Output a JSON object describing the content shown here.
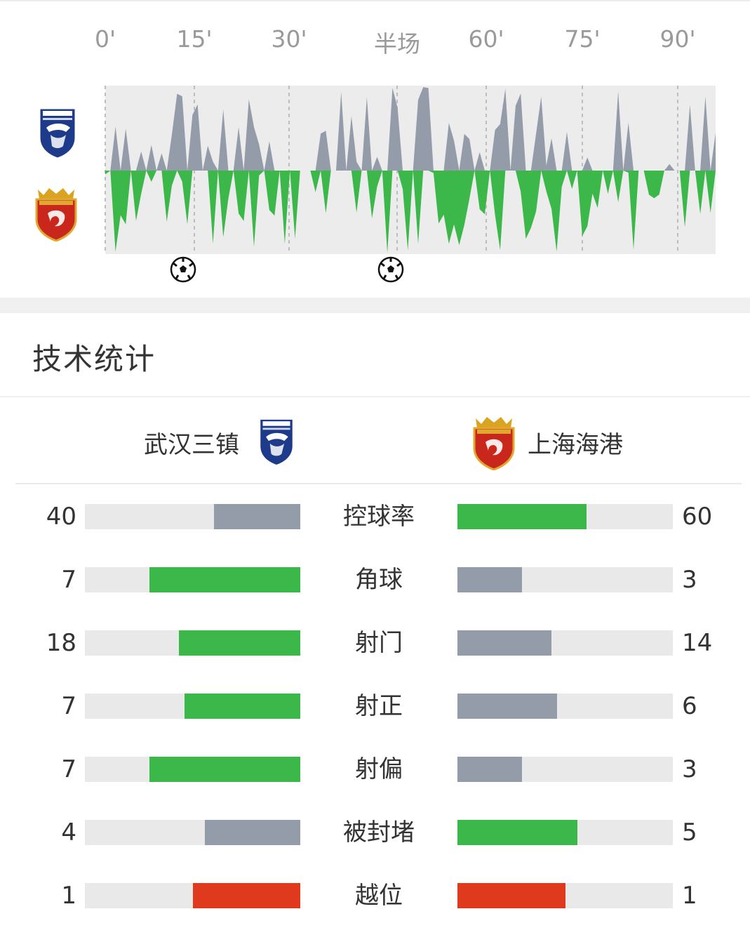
{
  "timeline": {
    "labels": [
      "0'",
      "15'",
      "30'",
      "半场",
      "60'",
      "75'",
      "90'"
    ],
    "goal_minutes": [
      12,
      44
    ]
  },
  "stats": {
    "title": "技术统计",
    "home_team": "武汉三镇",
    "away_team": "上海海港",
    "rows": [
      {
        "label": "控球率",
        "home": "40",
        "away": "60",
        "home_frac": 0.4,
        "away_frac": 0.6,
        "home_color": "#949caa",
        "away_color": "#3cb84a"
      },
      {
        "label": "角球",
        "home": "7",
        "away": "3",
        "home_frac": 0.7,
        "away_frac": 0.3,
        "home_color": "#3cb84a",
        "away_color": "#949caa"
      },
      {
        "label": "射门",
        "home": "18",
        "away": "14",
        "home_frac": 0.5625,
        "away_frac": 0.4375,
        "home_color": "#3cb84a",
        "away_color": "#949caa"
      },
      {
        "label": "射正",
        "home": "7",
        "away": "6",
        "home_frac": 0.538,
        "away_frac": 0.462,
        "home_color": "#3cb84a",
        "away_color": "#949caa"
      },
      {
        "label": "射偏",
        "home": "7",
        "away": "3",
        "home_frac": 0.7,
        "away_frac": 0.3,
        "home_color": "#3cb84a",
        "away_color": "#949caa"
      },
      {
        "label": "被封堵",
        "home": "4",
        "away": "5",
        "home_frac": 0.444,
        "away_frac": 0.556,
        "home_color": "#949caa",
        "away_color": "#3cb84a"
      },
      {
        "label": "越位",
        "home": "1",
        "away": "1",
        "home_frac": 0.5,
        "away_frac": 0.5,
        "home_color": "#e03a1e",
        "away_color": "#e03a1e"
      }
    ]
  },
  "colors": {
    "home_momentum": "#949caa",
    "away_momentum": "#3cb84a",
    "offside": "#e03a1e",
    "track": "#e9e9e9"
  },
  "icons": [
    "wuhan-three-towns-logo",
    "shanghai-port-logo",
    "goal-ball-icon"
  ]
}
